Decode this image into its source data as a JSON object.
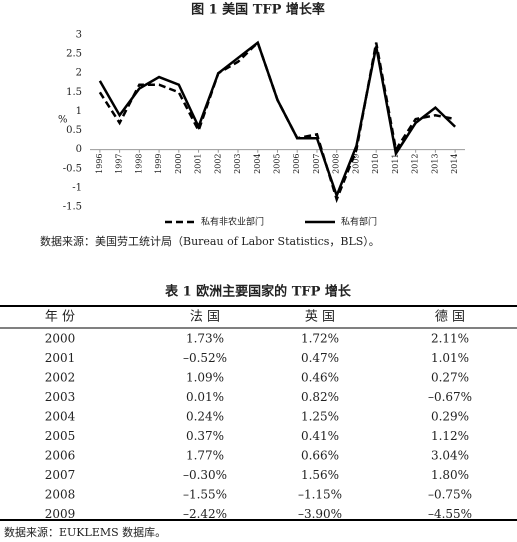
{
  "chart_data": {
    "type": "line",
    "title": "图 1  美国 TFP 增长率",
    "ylabel": "%",
    "categories": [
      "1996",
      "1997",
      "1998",
      "1999",
      "2000",
      "2001",
      "2002",
      "2003",
      "2004",
      "2005",
      "2006",
      "2007",
      "2008",
      "2009",
      "2010",
      "2011",
      "2012",
      "2013",
      "2014"
    ],
    "series": [
      {
        "name": "私有非农业部门",
        "color": "#000000",
        "linestyle": "dashed",
        "values": [
          1.5,
          0.7,
          1.7,
          1.7,
          1.5,
          0.5,
          2.0,
          2.3,
          2.8,
          1.3,
          0.3,
          0.4,
          -1.3,
          0.0,
          2.8,
          0.0,
          0.8,
          0.9,
          0.8
        ]
      },
      {
        "name": "私有部门",
        "color": "#000000",
        "linestyle": "solid",
        "values": [
          1.8,
          0.9,
          1.6,
          1.9,
          1.7,
          0.6,
          2.0,
          2.4,
          2.8,
          1.3,
          0.3,
          0.3,
          -1.2,
          0.1,
          2.7,
          -0.1,
          0.7,
          1.1,
          0.6
        ]
      }
    ],
    "ylim": [
      -1.5,
      3
    ],
    "yticks": [
      -1.5,
      -1,
      -0.5,
      0,
      0.5,
      1,
      1.5,
      2,
      2.5,
      3
    ],
    "grid": false
  },
  "chart_source": "数据来源：美国劳工统计局（Bureau of Labor Statistics，BLS）。",
  "table": {
    "title": "表 1  欧洲主要国家的 TFP 增长",
    "header": [
      "年 份",
      "法 国",
      "英 国",
      "德 国"
    ],
    "rows": [
      [
        "2000",
        "1.73%",
        "1.72%",
        "2.11%"
      ],
      [
        "2001",
        "–0.52%",
        "0.47%",
        "1.01%"
      ],
      [
        "2002",
        "1.09%",
        "0.46%",
        "0.27%"
      ],
      [
        "2003",
        "0.01%",
        "0.82%",
        "–0.67%"
      ],
      [
        "2004",
        "0.24%",
        "1.25%",
        "0.29%"
      ],
      [
        "2005",
        "0.37%",
        "0.41%",
        "1.12%"
      ],
      [
        "2006",
        "1.77%",
        "0.66%",
        "3.04%"
      ],
      [
        "2007",
        "–0.30%",
        "1.56%",
        "1.80%"
      ],
      [
        "2008",
        "–1.55%",
        "–1.15%",
        "–0.75%"
      ],
      [
        "2009",
        "–2.42%",
        "–3.90%",
        "–4.55%"
      ]
    ],
    "source": "数据来源：EUKLEMS 数据库。"
  }
}
